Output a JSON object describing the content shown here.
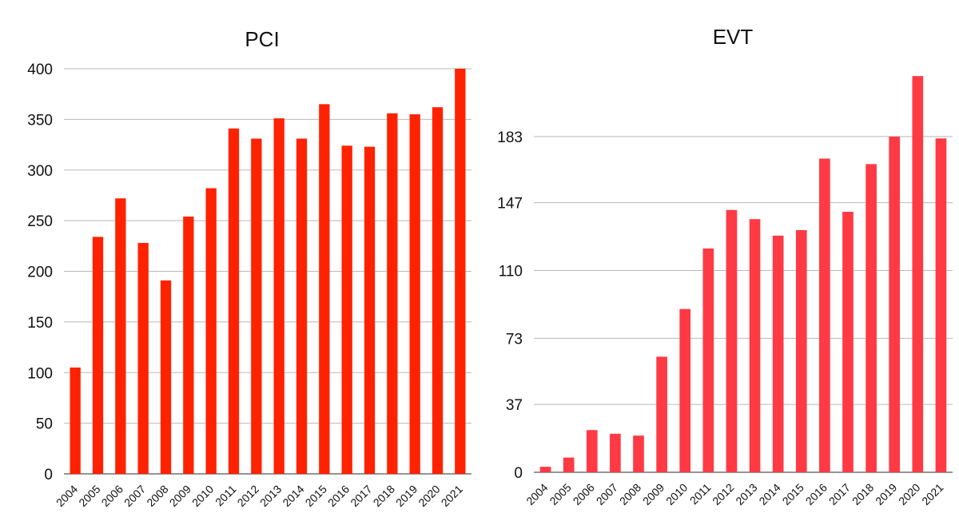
{
  "chart_data": [
    {
      "type": "bar",
      "title": "PCI",
      "xlabel": "",
      "ylabel": "",
      "categories": [
        "2004",
        "2005",
        "2006",
        "2007",
        "2008",
        "2009",
        "2010",
        "2011",
        "2012",
        "2013",
        "2014",
        "2015",
        "2016",
        "2017",
        "2018",
        "2019",
        "2020",
        "2021"
      ],
      "values": [
        105,
        234,
        272,
        228,
        191,
        254,
        282,
        341,
        331,
        351,
        331,
        365,
        324,
        323,
        356,
        355,
        362,
        400
      ],
      "yticks": [
        "0",
        "50",
        "100",
        "150",
        "200",
        "250",
        "300",
        "350",
        "400"
      ],
      "ylim": [
        0,
        400
      ],
      "grid": true,
      "legend": "none",
      "color": "#ff2200"
    },
    {
      "type": "bar",
      "title": "EVT",
      "xlabel": "",
      "ylabel": "",
      "categories": [
        "2004",
        "2005",
        "2006",
        "2007",
        "2008",
        "2009",
        "2010",
        "2011",
        "2012",
        "2013",
        "2014",
        "2015",
        "2016",
        "2017",
        "2018",
        "2019",
        "2020",
        "2021"
      ],
      "values": [
        3,
        8,
        23,
        21,
        20,
        63,
        89,
        122,
        143,
        138,
        129,
        132,
        171,
        142,
        168,
        183,
        216,
        182
      ],
      "yticks": [
        "0",
        "37",
        "73",
        "110",
        "147",
        "183"
      ],
      "ylim": [
        0,
        220
      ],
      "grid": true,
      "legend": "none",
      "color": "#ff3a44"
    }
  ]
}
